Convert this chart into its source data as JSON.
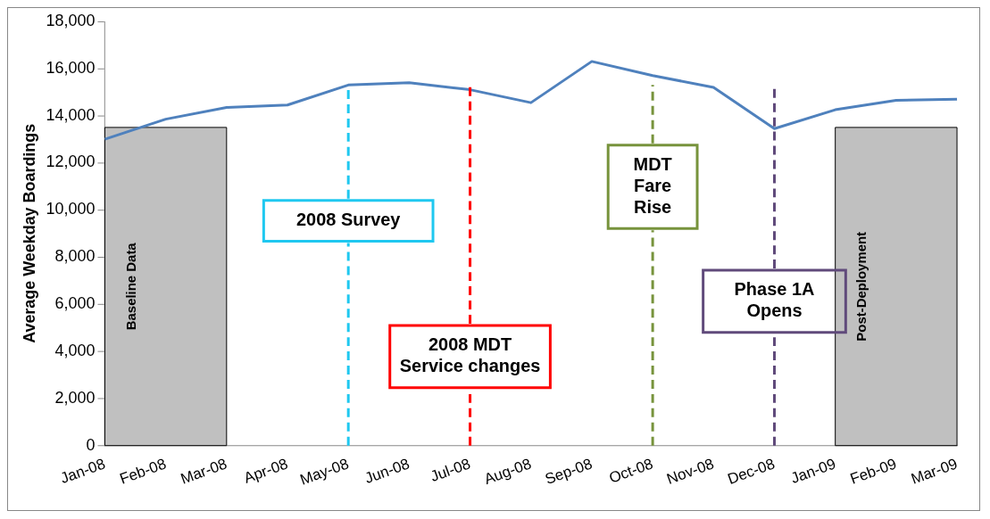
{
  "chart_data": {
    "type": "line",
    "ylabel": "Average Weekday Boardings",
    "categories": [
      "Jan-08",
      "Feb-08",
      "Mar-08",
      "Apr-08",
      "May-08",
      "Jun-08",
      "Jul-08",
      "Aug-08",
      "Sep-08",
      "Oct-08",
      "Nov-08",
      "Dec-08",
      "Jan-09",
      "Feb-09",
      "Mar-09"
    ],
    "series": [
      {
        "color": "#4f81bd",
        "values": [
          13000,
          13850,
          14350,
          14450,
          15300,
          15400,
          15100,
          14550,
          16300,
          15700,
          15200,
          13450,
          14250,
          14650,
          14700
        ]
      }
    ],
    "ylim": [
      0,
      18000
    ],
    "yticks": [
      0,
      {
        "value": 2000,
        "label": "2,000"
      },
      {
        "value": 4000,
        "label": "4,000"
      },
      {
        "value": 6000,
        "label": "6,000"
      },
      {
        "value": 8000,
        "label": "8,000"
      },
      {
        "value": 10000,
        "label": "10,000"
      },
      {
        "value": 12000,
        "label": "12,000"
      },
      {
        "value": 14000,
        "label": "14,000"
      },
      {
        "value": 16000,
        "label": "16,000"
      },
      {
        "value": 18000,
        "label": "18,000"
      }
    ],
    "bands": [
      {
        "axis": "x",
        "from": "Jan-08",
        "to": "Mar-08",
        "label": "Baseline Data",
        "color": "#c0c0c0"
      },
      {
        "axis": "x",
        "from": "Jan-09",
        "to": "Mar-09",
        "label": "Post-Deployment",
        "color": "#c0c0c0"
      }
    ],
    "ref_lines": [
      {
        "axis": "x",
        "value": "May-08",
        "label": "2008 Survey",
        "color": "#1fc8f0",
        "line_style": "dashed"
      },
      {
        "axis": "x",
        "value": "Jul-08",
        "label": "2008 MDT Service changes",
        "color": "#ff0000",
        "line_style": "dashed"
      },
      {
        "axis": "x",
        "value": "Oct-08",
        "label": "MDT Fare Rise",
        "color": "#77933c",
        "line_style": "dashed"
      },
      {
        "axis": "x",
        "value": "Dec-08",
        "label": "Phase 1A Opens",
        "color": "#604a7b",
        "line_style": "dashed"
      }
    ],
    "grid": false,
    "legend": false,
    "marker": "none",
    "line_style": "solid"
  }
}
